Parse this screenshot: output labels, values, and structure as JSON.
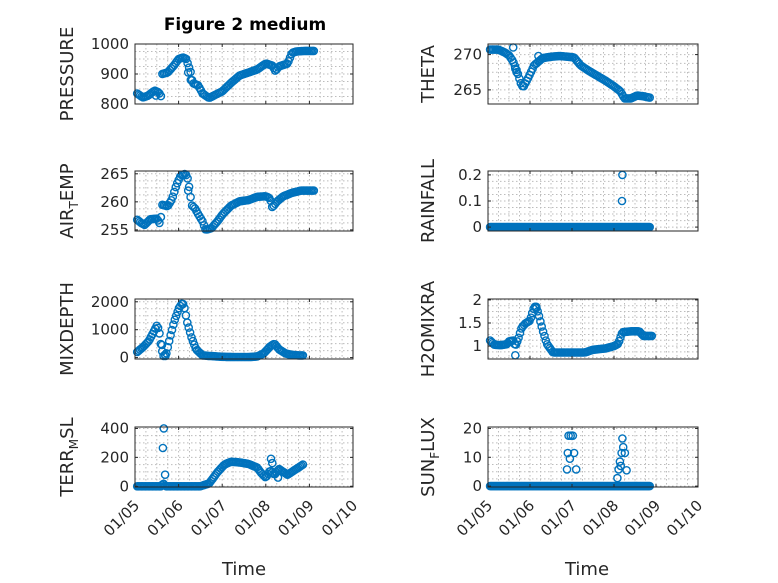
{
  "figure": {
    "title": "Figure 2 medium",
    "marker_color": "#0072BD",
    "x_ticks": [
      "01/05",
      "01/06",
      "01/07",
      "01/08",
      "01/09",
      "01/10"
    ]
  },
  "chart_data": [
    {
      "type": "scatter",
      "name": "pressure",
      "ylabel": "PRESSURE",
      "xlabel": "",
      "ylim": [
        800,
        1000
      ],
      "yticks": [
        800,
        900,
        1000
      ],
      "ytick_labels": [
        "800",
        "900",
        "1000"
      ],
      "xlim": [
        0,
        5
      ],
      "anchors": [
        [
          0.05,
          835
        ],
        [
          0.18,
          822
        ],
        [
          0.3,
          828
        ],
        [
          0.45,
          845
        ],
        [
          0.55,
          838
        ],
        [
          0.6,
          825
        ],
        [
          0.62,
          900
        ],
        [
          0.75,
          905
        ],
        [
          0.9,
          930
        ],
        [
          1.0,
          950
        ],
        [
          1.1,
          955
        ],
        [
          1.18,
          950
        ],
        [
          1.22,
          930
        ],
        [
          1.28,
          905
        ],
        [
          1.32,
          870
        ],
        [
          1.45,
          862
        ],
        [
          1.55,
          835
        ],
        [
          1.7,
          820
        ],
        [
          1.9,
          835
        ],
        [
          2.0,
          842
        ],
        [
          2.2,
          870
        ],
        [
          2.4,
          895
        ],
        [
          2.6,
          905
        ],
        [
          2.8,
          915
        ],
        [
          3.0,
          935
        ],
        [
          3.15,
          928
        ],
        [
          3.22,
          910
        ],
        [
          3.3,
          925
        ],
        [
          3.5,
          935
        ],
        [
          3.6,
          970
        ],
        [
          3.7,
          975
        ],
        [
          3.9,
          977
        ],
        [
          4.1,
          977
        ]
      ],
      "n_points": 120,
      "spikes": [
        [
          0.48,
          828
        ],
        [
          1.22,
          905
        ],
        [
          1.28,
          880
        ]
      ]
    },
    {
      "type": "scatter",
      "name": "theta",
      "ylabel": "THETA",
      "xlabel": "",
      "ylim": [
        263,
        271.5
      ],
      "yticks": [
        265,
        270
      ],
      "ytick_labels": [
        "265",
        "270"
      ],
      "xlim": [
        0,
        5
      ],
      "anchors": [
        [
          0.05,
          270.7
        ],
        [
          0.25,
          270.7
        ],
        [
          0.4,
          270.3
        ],
        [
          0.5,
          269.9
        ],
        [
          0.6,
          269.0
        ],
        [
          0.7,
          267.5
        ],
        [
          0.8,
          265.6
        ],
        [
          0.85,
          265.5
        ],
        [
          0.95,
          266.6
        ],
        [
          1.1,
          268.5
        ],
        [
          1.3,
          269.5
        ],
        [
          1.5,
          269.7
        ],
        [
          1.7,
          269.8
        ],
        [
          1.9,
          269.7
        ],
        [
          2.05,
          269.6
        ],
        [
          2.2,
          268.5
        ],
        [
          2.4,
          267.7
        ],
        [
          2.6,
          267.0
        ],
        [
          2.8,
          266.3
        ],
        [
          3.0,
          265.5
        ],
        [
          3.15,
          264.8
        ],
        [
          3.25,
          263.8
        ],
        [
          3.4,
          263.8
        ],
        [
          3.55,
          264.2
        ],
        [
          3.7,
          264.1
        ],
        [
          3.85,
          263.9
        ]
      ],
      "n_points": 110,
      "spikes": [
        [
          0.6,
          271.0
        ],
        [
          0.65,
          268.0
        ],
        [
          0.68,
          267.5
        ],
        [
          1.2,
          269.8
        ]
      ]
    },
    {
      "type": "scatter",
      "name": "air_temp",
      "ylabel": "AIR_TEMP",
      "ylabel_base": "AIR",
      "ylabel_sub": "T",
      "ylabel_rest": "EMP",
      "xlabel": "",
      "ylim": [
        254.8,
        265.5
      ],
      "yticks": [
        255,
        260,
        265
      ],
      "ytick_labels": [
        "255",
        "260",
        "265"
      ],
      "xlim": [
        0,
        5
      ],
      "anchors": [
        [
          0.05,
          256.8
        ],
        [
          0.15,
          256.2
        ],
        [
          0.22,
          255.9
        ],
        [
          0.35,
          256.9
        ],
        [
          0.5,
          257.0
        ],
        [
          0.58,
          256.0
        ],
        [
          0.62,
          259.5
        ],
        [
          0.75,
          259.2
        ],
        [
          0.85,
          260.5
        ],
        [
          0.95,
          263.0
        ],
        [
          1.05,
          264.7
        ],
        [
          1.15,
          265.0
        ],
        [
          1.2,
          264.5
        ],
        [
          1.25,
          262.3
        ],
        [
          1.3,
          259.4
        ],
        [
          1.38,
          258.8
        ],
        [
          1.45,
          257.8
        ],
        [
          1.55,
          256.5
        ],
        [
          1.62,
          255.0
        ],
        [
          1.75,
          255.3
        ],
        [
          1.9,
          256.6
        ],
        [
          2.0,
          257.7
        ],
        [
          2.2,
          259.3
        ],
        [
          2.4,
          260.1
        ],
        [
          2.6,
          260.3
        ],
        [
          2.8,
          260.9
        ],
        [
          3.0,
          261.0
        ],
        [
          3.1,
          260.6
        ],
        [
          3.15,
          259.0
        ],
        [
          3.25,
          260.0
        ],
        [
          3.4,
          261.0
        ],
        [
          3.6,
          261.6
        ],
        [
          3.8,
          262.0
        ],
        [
          4.1,
          262.0
        ]
      ],
      "n_points": 120,
      "spikes": [
        [
          1.22,
          262.0
        ]
      ]
    },
    {
      "type": "scatter",
      "name": "rainfall",
      "ylabel": "RAINFALL",
      "xlabel": "",
      "ylim": [
        -0.015,
        0.215
      ],
      "yticks": [
        0,
        0.1,
        0.2
      ],
      "ytick_labels": [
        "0",
        "0.1",
        "0.2"
      ],
      "xlim": [
        0,
        5
      ],
      "anchors": [
        [
          0.05,
          0
        ],
        [
          3.85,
          0
        ]
      ],
      "n_points": 150,
      "spikes": [
        [
          3.2,
          0.2
        ],
        [
          3.19,
          0.1
        ]
      ]
    },
    {
      "type": "scatter",
      "name": "mixdepth",
      "ylabel": "MIXDEPTH",
      "xlabel": "",
      "ylim": [
        -50,
        2100
      ],
      "yticks": [
        0,
        1000,
        2000
      ],
      "ytick_labels": [
        "0",
        "1000",
        "2000"
      ],
      "xlim": [
        0,
        5
      ],
      "anchors": [
        [
          0.05,
          200
        ],
        [
          0.2,
          400
        ],
        [
          0.32,
          600
        ],
        [
          0.42,
          900
        ],
        [
          0.5,
          1150
        ],
        [
          0.55,
          1000
        ],
        [
          0.6,
          400
        ],
        [
          0.65,
          50
        ],
        [
          0.72,
          150
        ],
        [
          0.8,
          700
        ],
        [
          0.9,
          1300
        ],
        [
          1.0,
          1750
        ],
        [
          1.08,
          1950
        ],
        [
          1.12,
          1900
        ],
        [
          1.2,
          1250
        ],
        [
          1.3,
          700
        ],
        [
          1.4,
          300
        ],
        [
          1.55,
          80
        ],
        [
          1.7,
          60
        ],
        [
          2.0,
          30
        ],
        [
          2.3,
          20
        ],
        [
          2.6,
          20
        ],
        [
          2.8,
          40
        ],
        [
          2.95,
          150
        ],
        [
          3.1,
          400
        ],
        [
          3.2,
          500
        ],
        [
          3.3,
          300
        ],
        [
          3.45,
          150
        ],
        [
          3.6,
          100
        ],
        [
          3.75,
          80
        ],
        [
          3.85,
          80
        ]
      ],
      "n_points": 120,
      "spikes": [
        [
          0.62,
          450
        ],
        [
          0.7,
          60
        ]
      ]
    },
    {
      "type": "scatter",
      "name": "h2omixra",
      "ylabel": "H2OMIXRA",
      "xlabel": "",
      "ylim": [
        0.72,
        2.02
      ],
      "yticks": [
        1,
        1.5,
        2
      ],
      "ytick_labels": [
        "1",
        "1.5",
        "2"
      ],
      "xlim": [
        0,
        5
      ],
      "anchors": [
        [
          0.05,
          1.12
        ],
        [
          0.15,
          1.03
        ],
        [
          0.3,
          1.02
        ],
        [
          0.45,
          1.04
        ],
        [
          0.5,
          1.1
        ],
        [
          0.6,
          1.12
        ],
        [
          0.65,
          1.0
        ],
        [
          0.72,
          1.15
        ],
        [
          0.8,
          1.4
        ],
        [
          0.9,
          1.5
        ],
        [
          1.0,
          1.55
        ],
        [
          1.08,
          1.8
        ],
        [
          1.14,
          1.88
        ],
        [
          1.2,
          1.7
        ],
        [
          1.3,
          1.35
        ],
        [
          1.4,
          1.05
        ],
        [
          1.55,
          0.86
        ],
        [
          1.7,
          0.86
        ],
        [
          2.0,
          0.86
        ],
        [
          2.3,
          0.86
        ],
        [
          2.5,
          0.92
        ],
        [
          2.8,
          0.95
        ],
        [
          3.0,
          1.0
        ],
        [
          3.1,
          1.05
        ],
        [
          3.2,
          1.3
        ],
        [
          3.4,
          1.32
        ],
        [
          3.6,
          1.32
        ],
        [
          3.7,
          1.22
        ],
        [
          3.9,
          1.22
        ]
      ],
      "n_points": 120,
      "spikes": [
        [
          0.65,
          0.8
        ],
        [
          1.15,
          1.82
        ]
      ]
    },
    {
      "type": "scatter",
      "name": "terr_msl",
      "ylabel": "TERR_MSL",
      "ylabel_base": "TERR",
      "ylabel_sub": "M",
      "ylabel_rest": "SL",
      "xlabel": "Time",
      "ylim": [
        -5,
        410
      ],
      "yticks": [
        0,
        200,
        400
      ],
      "ytick_labels": [
        "0",
        "200",
        "400"
      ],
      "xlim": [
        0,
        5
      ],
      "anchors": [
        [
          0.05,
          0
        ],
        [
          0.6,
          0
        ],
        [
          0.65,
          20
        ],
        [
          0.7,
          0
        ],
        [
          1.5,
          0
        ],
        [
          1.7,
          20
        ],
        [
          1.9,
          100
        ],
        [
          2.05,
          150
        ],
        [
          2.2,
          170
        ],
        [
          2.4,
          165
        ],
        [
          2.6,
          155
        ],
        [
          2.8,
          130
        ],
        [
          2.9,
          90
        ],
        [
          3.0,
          60
        ],
        [
          3.1,
          110
        ],
        [
          3.2,
          80
        ],
        [
          3.3,
          120
        ],
        [
          3.5,
          80
        ],
        [
          3.7,
          120
        ],
        [
          3.85,
          150
        ]
      ],
      "n_points": 120,
      "spikes": [
        [
          0.66,
          400
        ],
        [
          0.64,
          265
        ],
        [
          0.69,
          80
        ],
        [
          3.12,
          190
        ],
        [
          3.15,
          160
        ],
        [
          3.28,
          60
        ]
      ]
    },
    {
      "type": "scatter",
      "name": "sun_flux",
      "ylabel": "SUN_FLUX",
      "ylabel_base": "SUN",
      "ylabel_sub": "F",
      "ylabel_rest": "LUX",
      "xlabel": "Time",
      "ylim": [
        -0.3,
        20.5
      ],
      "yticks": [
        0,
        10,
        20
      ],
      "ytick_labels": [
        "0",
        "10",
        "20"
      ],
      "xlim": [
        0,
        5
      ],
      "anchors": [
        [
          0.05,
          0
        ],
        [
          3.85,
          0
        ]
      ],
      "n_points": 150,
      "spikes": [
        [
          1.92,
          17.5
        ],
        [
          1.97,
          17.5
        ],
        [
          2.02,
          17.5
        ],
        [
          1.9,
          11.5
        ],
        [
          2.05,
          11.5
        ],
        [
          1.88,
          5.8
        ],
        [
          2.1,
          5.8
        ],
        [
          1.95,
          9.5
        ],
        [
          3.2,
          16.5
        ],
        [
          3.22,
          13.5
        ],
        [
          3.18,
          11.5
        ],
        [
          3.14,
          8.5
        ],
        [
          3.11,
          5.8
        ],
        [
          3.08,
          2.8
        ],
        [
          3.26,
          11.5
        ],
        [
          3.3,
          5.5
        ],
        [
          3.16,
          7.0
        ]
      ]
    }
  ]
}
